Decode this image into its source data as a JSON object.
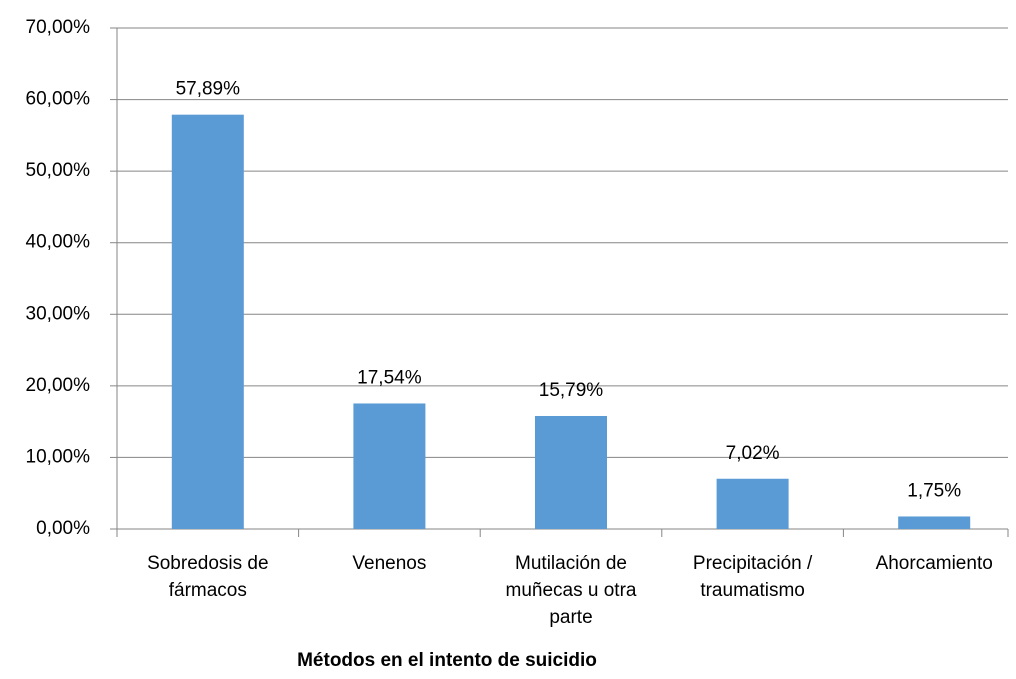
{
  "chart_data": {
    "type": "bar",
    "x_label": "Métodos en el intento de suicidio",
    "categories": [
      "Sobredosis de fármacos",
      "Venenos",
      "Mutilación de muñecas u otra parte",
      "Precipitación / traumatismo",
      "Ahorcamiento"
    ],
    "values": [
      57.89,
      17.54,
      15.79,
      7.02,
      1.75
    ],
    "value_labels": [
      "57,89%",
      "17,54%",
      "15,79%",
      "7,02%",
      "1,75%"
    ],
    "color": "#5b9bd5",
    "ylim": [
      0,
      70
    ],
    "yticks": [
      {
        "value": 0,
        "label": "0,00%"
      },
      {
        "value": 10,
        "label": "10,00%"
      },
      {
        "value": 20,
        "label": "20,00%"
      },
      {
        "value": 30,
        "label": "30,00%"
      },
      {
        "value": 40,
        "label": "40,00%"
      },
      {
        "value": 50,
        "label": "50,00%"
      },
      {
        "value": 60,
        "label": "60,00%"
      },
      {
        "value": 70,
        "label": "70,00%"
      }
    ],
    "grid": true
  }
}
